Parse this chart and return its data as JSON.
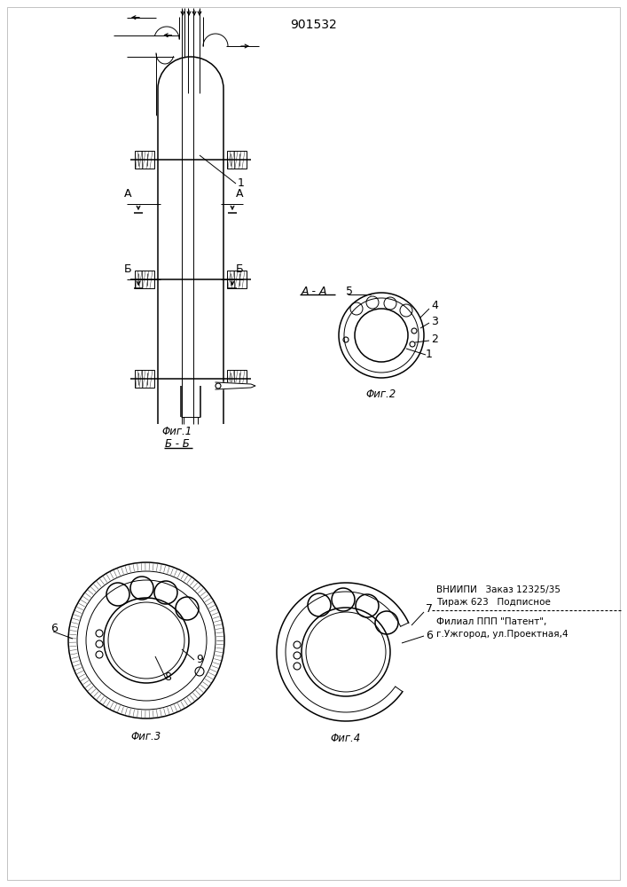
{
  "title": "901532",
  "background_color": "#ffffff",
  "line_color": "#000000",
  "fig1_label": "Φиг.1",
  "fig2_label": "Φиг.2",
  "fig3_label": "Φиг.3",
  "fig4_label": "Φиг.4",
  "section_aa_label": "А - А",
  "section_bb_label": "Б - Б",
  "vnipi_line1": "ВНИИПИ   Заказ 12325/35",
  "vnipi_line2": "Тираж 623   Подписное",
  "filial_line1": "Филиал ППП \"Патент\",",
  "filial_line2": "г.Ужгород, ул.Проектная,4"
}
